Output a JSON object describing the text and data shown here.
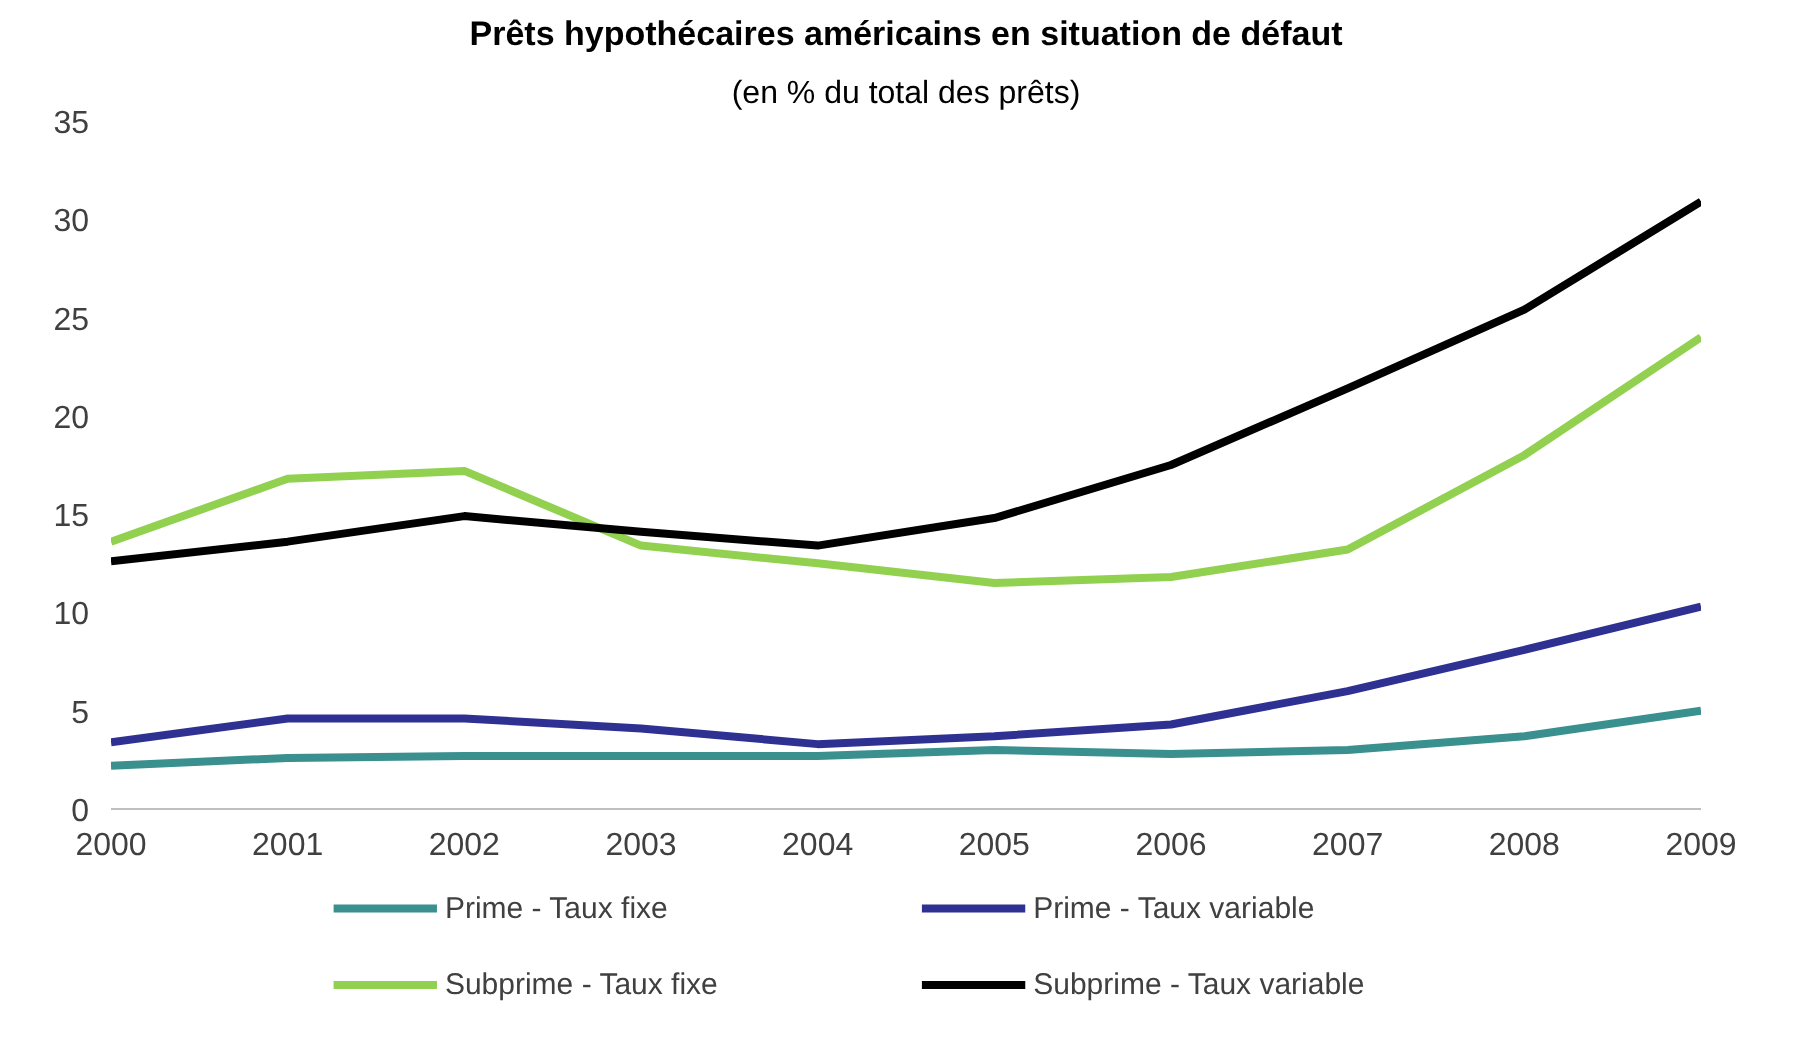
{
  "chart_data": {
    "type": "line",
    "title": "Prêts hypothécaires américains en situation de défaut",
    "subtitle": "(en % du total des prêts)",
    "x": [
      2000,
      2001,
      2002,
      2003,
      2004,
      2005,
      2006,
      2007,
      2008,
      2009
    ],
    "xlim": [
      2000,
      2009
    ],
    "xticks": [
      2000,
      2001,
      2002,
      2003,
      2004,
      2005,
      2006,
      2007,
      2008,
      2009
    ],
    "ylim": [
      0,
      35
    ],
    "yticks": [
      0,
      5,
      10,
      15,
      20,
      25,
      30,
      35
    ],
    "grid": false,
    "legend": "bottom",
    "line_style": "solid",
    "series": [
      {
        "name": "Prime - Taux fixe",
        "color": "#3a8f8f",
        "values": [
          2.2,
          2.6,
          2.7,
          2.7,
          2.7,
          3.0,
          2.8,
          3.0,
          3.7,
          5.0
        ]
      },
      {
        "name": "Prime - Taux variable",
        "color": "#2e3192",
        "values": [
          3.4,
          4.6,
          4.6,
          4.1,
          3.3,
          3.7,
          4.3,
          6.0,
          8.1,
          10.3
        ]
      },
      {
        "name": "Subprime - Taux fixe",
        "color": "#92d050",
        "values": [
          13.6,
          16.8,
          17.2,
          13.4,
          12.5,
          11.5,
          11.8,
          13.2,
          18.0,
          24.0
        ]
      },
      {
        "name": "Subprime - Taux variable",
        "color": "#000000",
        "values": [
          12.6,
          13.6,
          14.9,
          14.1,
          13.4,
          14.8,
          17.5,
          21.4,
          25.4,
          30.9
        ]
      }
    ]
  }
}
